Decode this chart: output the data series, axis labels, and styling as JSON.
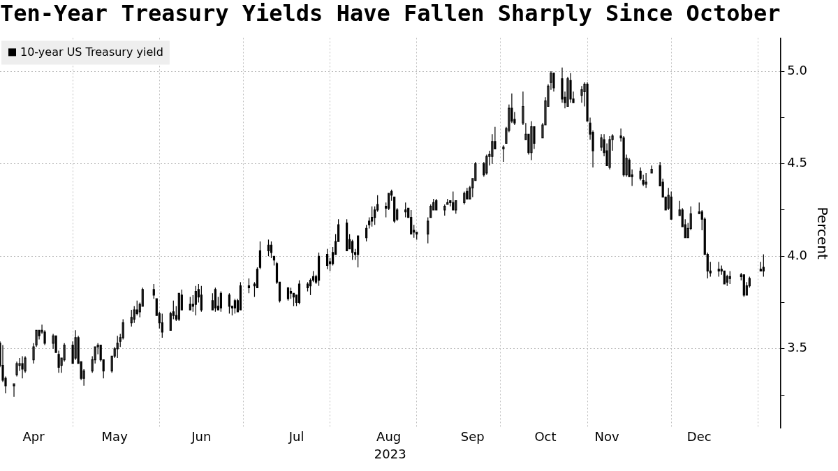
{
  "chart_data": {
    "type": "candlestick",
    "title": "Ten-Year Treasury Yields Have Fallen Sharply Since October",
    "xlabel": "2023",
    "ylabel": "Percent",
    "x": [
      "2023-04-05",
      "2023-04-06",
      "2023-04-07",
      "2023-04-10",
      "2023-04-11",
      "2023-04-12",
      "2023-04-13",
      "2023-04-14",
      "2023-04-17",
      "2023-04-18",
      "2023-04-19",
      "2023-04-20",
      "2023-04-21",
      "2023-04-24",
      "2023-04-25",
      "2023-04-26",
      "2023-04-27",
      "2023-04-28",
      "2023-05-01",
      "2023-05-02",
      "2023-05-03",
      "2023-05-04",
      "2023-05-05",
      "2023-05-08",
      "2023-05-09",
      "2023-05-10",
      "2023-05-11",
      "2023-05-12",
      "2023-05-15",
      "2023-05-16",
      "2023-05-17",
      "2023-05-18",
      "2023-05-19",
      "2023-05-22",
      "2023-05-23",
      "2023-05-24",
      "2023-05-25",
      "2023-05-26",
      "2023-05-30",
      "2023-05-31",
      "2023-06-01",
      "2023-06-02",
      "2023-06-05",
      "2023-06-06",
      "2023-06-07",
      "2023-06-08",
      "2023-06-09",
      "2023-06-12",
      "2023-06-13",
      "2023-06-14",
      "2023-06-15",
      "2023-06-16",
      "2023-06-20",
      "2023-06-21",
      "2023-06-22",
      "2023-06-23",
      "2023-06-26",
      "2023-06-27",
      "2023-06-28",
      "2023-06-29",
      "2023-06-30",
      "2023-07-03",
      "2023-07-05",
      "2023-07-06",
      "2023-07-07",
      "2023-07-10",
      "2023-07-11",
      "2023-07-12",
      "2023-07-13",
      "2023-07-14",
      "2023-07-17",
      "2023-07-18",
      "2023-07-19",
      "2023-07-20",
      "2023-07-21",
      "2023-07-24",
      "2023-07-25",
      "2023-07-26",
      "2023-07-27",
      "2023-07-28",
      "2023-07-31",
      "2023-08-01",
      "2023-08-02",
      "2023-08-03",
      "2023-08-04",
      "2023-08-07",
      "2023-08-08",
      "2023-08-09",
      "2023-08-10",
      "2023-08-11",
      "2023-08-14",
      "2023-08-15",
      "2023-08-16",
      "2023-08-17",
      "2023-08-18",
      "2023-08-21",
      "2023-08-22",
      "2023-08-23",
      "2023-08-24",
      "2023-08-25",
      "2023-08-28",
      "2023-08-29",
      "2023-08-30",
      "2023-08-31",
      "2023-09-01",
      "2023-09-05",
      "2023-09-06",
      "2023-09-07",
      "2023-09-08",
      "2023-09-11",
      "2023-09-12",
      "2023-09-13",
      "2023-09-14",
      "2023-09-15",
      "2023-09-18",
      "2023-09-19",
      "2023-09-20",
      "2023-09-21",
      "2023-09-22",
      "2023-09-25",
      "2023-09-26",
      "2023-09-27",
      "2023-09-28",
      "2023-09-29",
      "2023-10-02",
      "2023-10-03",
      "2023-10-04",
      "2023-10-05",
      "2023-10-06",
      "2023-10-09",
      "2023-10-10",
      "2023-10-11",
      "2023-10-12",
      "2023-10-13",
      "2023-10-16",
      "2023-10-17",
      "2023-10-18",
      "2023-10-19",
      "2023-10-20",
      "2023-10-23",
      "2023-10-24",
      "2023-10-25",
      "2023-10-26",
      "2023-10-27",
      "2023-10-30",
      "2023-10-31",
      "2023-11-01",
      "2023-11-02",
      "2023-11-03",
      "2023-11-06",
      "2023-11-07",
      "2023-11-08",
      "2023-11-09",
      "2023-11-10",
      "2023-11-13",
      "2023-11-14",
      "2023-11-15",
      "2023-11-16",
      "2023-11-17",
      "2023-11-20",
      "2023-11-21",
      "2023-11-22",
      "2023-11-24",
      "2023-11-27",
      "2023-11-28",
      "2023-11-29",
      "2023-11-30",
      "2023-12-01",
      "2023-12-04",
      "2023-12-05",
      "2023-12-06",
      "2023-12-07",
      "2023-12-08",
      "2023-12-11",
      "2023-12-12",
      "2023-12-13",
      "2023-12-14",
      "2023-12-15",
      "2023-12-18",
      "2023-12-19",
      "2023-12-20",
      "2023-12-21",
      "2023-12-22",
      "2023-12-26",
      "2023-12-27",
      "2023-12-28",
      "2023-12-29",
      "2024-01-02",
      "2024-01-03"
    ],
    "series": [
      {
        "name": "10-year US Treasury yield",
        "color": "#000000",
        "ohlc": [
          [
            3.53,
            3.54,
            3.4,
            3.41
          ],
          [
            3.41,
            3.52,
            3.32,
            3.33
          ],
          [
            3.34,
            3.35,
            3.26,
            3.3
          ],
          [
            3.3,
            3.31,
            3.24,
            3.31
          ],
          [
            3.36,
            3.43,
            3.35,
            3.42
          ],
          [
            3.41,
            3.45,
            3.38,
            3.42
          ],
          [
            3.42,
            3.46,
            3.34,
            3.39
          ],
          [
            3.38,
            3.46,
            3.37,
            3.45
          ],
          [
            3.44,
            3.53,
            3.42,
            3.51
          ],
          [
            3.52,
            3.6,
            3.51,
            3.6
          ],
          [
            3.6,
            3.6,
            3.55,
            3.57
          ],
          [
            3.59,
            3.63,
            3.58,
            3.6
          ],
          [
            3.59,
            3.6,
            3.52,
            3.53
          ],
          [
            3.53,
            3.58,
            3.5,
            3.57
          ],
          [
            3.57,
            3.57,
            3.48,
            3.48
          ],
          [
            3.47,
            3.49,
            3.37,
            3.4
          ],
          [
            3.41,
            3.45,
            3.37,
            3.45
          ],
          [
            3.44,
            3.53,
            3.43,
            3.52
          ],
          [
            3.52,
            3.54,
            3.42,
            3.42
          ],
          [
            3.45,
            3.6,
            3.44,
            3.56
          ],
          [
            3.56,
            3.57,
            3.42,
            3.42
          ],
          [
            3.43,
            3.43,
            3.33,
            3.34
          ],
          [
            3.34,
            3.39,
            3.3,
            3.38
          ],
          [
            3.38,
            3.46,
            3.37,
            3.44
          ],
          [
            3.44,
            3.51,
            3.42,
            3.51
          ],
          [
            3.51,
            3.53,
            3.47,
            3.52
          ],
          [
            3.52,
            3.52,
            3.43,
            3.44
          ],
          [
            3.44,
            3.44,
            3.34,
            3.38
          ],
          [
            3.38,
            3.46,
            3.37,
            3.46
          ],
          [
            3.46,
            3.51,
            3.45,
            3.5
          ],
          [
            3.5,
            3.57,
            3.45,
            3.53
          ],
          [
            3.54,
            3.58,
            3.51,
            3.56
          ],
          [
            3.56,
            3.66,
            3.55,
            3.64
          ],
          [
            3.64,
            3.71,
            3.62,
            3.67
          ],
          [
            3.66,
            3.73,
            3.64,
            3.71
          ],
          [
            3.71,
            3.76,
            3.68,
            3.69
          ],
          [
            3.7,
            3.75,
            3.67,
            3.74
          ],
          [
            3.73,
            3.83,
            3.73,
            3.82
          ],
          [
            3.82,
            3.85,
            3.77,
            3.79
          ],
          [
            3.77,
            3.77,
            3.68,
            3.68
          ],
          [
            3.69,
            3.7,
            3.61,
            3.64
          ],
          [
            3.64,
            3.69,
            3.56,
            3.59
          ],
          [
            3.6,
            3.7,
            3.6,
            3.69
          ],
          [
            3.7,
            3.76,
            3.66,
            3.68
          ],
          [
            3.68,
            3.73,
            3.65,
            3.66
          ],
          [
            3.66,
            3.8,
            3.65,
            3.8
          ],
          [
            3.79,
            3.82,
            3.71,
            3.71
          ],
          [
            3.71,
            3.78,
            3.71,
            3.74
          ],
          [
            3.74,
            3.79,
            3.7,
            3.73
          ],
          [
            3.74,
            3.84,
            3.68,
            3.81
          ],
          [
            3.82,
            3.85,
            3.75,
            3.78
          ],
          [
            3.79,
            3.84,
            3.7,
            3.71
          ],
          [
            3.71,
            3.8,
            3.71,
            3.76
          ],
          [
            3.82,
            3.83,
            3.7,
            3.72
          ],
          [
            3.73,
            3.78,
            3.71,
            3.71
          ],
          [
            3.72,
            3.81,
            3.7,
            3.8
          ],
          [
            3.79,
            3.8,
            3.69,
            3.73
          ],
          [
            3.72,
            3.73,
            3.68,
            3.73
          ],
          [
            3.72,
            3.77,
            3.69,
            3.76
          ],
          [
            3.76,
            3.77,
            3.7,
            3.7
          ],
          [
            3.71,
            3.86,
            3.71,
            3.84
          ],
          [
            3.83,
            3.88,
            3.8,
            3.84
          ],
          [
            3.84,
            3.86,
            3.78,
            3.85
          ],
          [
            3.83,
            3.94,
            3.83,
            3.93
          ],
          [
            3.94,
            4.08,
            3.93,
            4.03
          ],
          [
            4.03,
            4.09,
            4.0,
            4.06
          ],
          [
            4.06,
            4.08,
            3.99,
            4.02
          ],
          [
            4.0,
            4.0,
            3.95,
            3.98
          ],
          [
            3.96,
            3.97,
            3.85,
            3.86
          ],
          [
            3.86,
            3.86,
            3.75,
            3.76
          ],
          [
            3.77,
            3.83,
            3.76,
            3.83
          ],
          [
            3.81,
            3.83,
            3.77,
            3.8
          ],
          [
            3.8,
            3.8,
            3.73,
            3.78
          ],
          [
            3.79,
            3.79,
            3.73,
            3.75
          ],
          [
            3.75,
            3.87,
            3.74,
            3.85
          ],
          [
            3.85,
            3.86,
            3.81,
            3.83
          ],
          [
            3.84,
            3.88,
            3.79,
            3.87
          ],
          [
            3.87,
            3.92,
            3.86,
            3.89
          ],
          [
            3.89,
            3.9,
            3.85,
            3.86
          ],
          [
            3.87,
            4.02,
            3.84,
            4.0
          ],
          [
            4.01,
            4.04,
            3.93,
            3.95
          ],
          [
            3.96,
            3.99,
            3.92,
            3.97
          ],
          [
            3.96,
            4.05,
            3.95,
            4.02
          ],
          [
            4.01,
            4.12,
            4.01,
            4.08
          ],
          [
            4.08,
            4.2,
            4.08,
            4.17
          ],
          [
            4.18,
            4.2,
            4.03,
            4.03
          ],
          [
            4.04,
            4.12,
            4.04,
            4.09
          ],
          [
            4.08,
            4.09,
            3.98,
            4.02
          ],
          [
            4.02,
            4.04,
            3.98,
            4.01
          ],
          [
            4.01,
            4.11,
            3.94,
            4.11
          ],
          [
            4.1,
            4.17,
            4.08,
            4.15
          ],
          [
            4.17,
            4.21,
            4.15,
            4.19
          ],
          [
            4.19,
            4.27,
            4.16,
            4.21
          ],
          [
            4.21,
            4.27,
            4.17,
            4.25
          ],
          [
            4.25,
            4.33,
            4.24,
            4.28
          ],
          [
            4.27,
            4.29,
            4.21,
            4.26
          ],
          [
            4.26,
            4.34,
            4.25,
            4.34
          ],
          [
            4.35,
            4.36,
            4.3,
            4.33
          ],
          [
            4.32,
            4.32,
            4.18,
            4.19
          ],
          [
            4.2,
            4.26,
            4.19,
            4.25
          ],
          [
            4.24,
            4.29,
            4.21,
            4.25
          ],
          [
            4.26,
            4.26,
            4.21,
            4.21
          ],
          [
            4.21,
            4.25,
            4.12,
            4.12
          ],
          [
            4.14,
            4.17,
            4.1,
            4.13
          ],
          [
            4.13,
            4.13,
            4.09,
            4.12
          ],
          [
            4.12,
            4.21,
            4.07,
            4.19
          ],
          [
            4.21,
            4.28,
            4.21,
            4.27
          ],
          [
            4.25,
            4.31,
            4.25,
            4.29
          ],
          [
            4.3,
            4.31,
            4.25,
            4.25
          ],
          [
            4.25,
            4.28,
            4.22,
            4.27
          ],
          [
            4.28,
            4.31,
            4.28,
            4.29
          ],
          [
            4.3,
            4.3,
            4.27,
            4.29
          ],
          [
            4.29,
            4.35,
            4.25,
            4.25
          ],
          [
            4.25,
            4.3,
            4.23,
            4.3
          ],
          [
            4.29,
            4.35,
            4.28,
            4.34
          ],
          [
            4.35,
            4.37,
            4.31,
            4.31
          ],
          [
            4.31,
            4.38,
            4.31,
            4.37
          ],
          [
            4.37,
            4.42,
            4.32,
            4.42
          ],
          [
            4.41,
            4.51,
            4.41,
            4.5
          ],
          [
            4.5,
            4.51,
            4.43,
            4.44
          ],
          [
            4.45,
            4.55,
            4.44,
            4.54
          ],
          [
            4.54,
            4.57,
            4.49,
            4.55
          ],
          [
            4.54,
            4.66,
            4.5,
            4.62
          ],
          [
            4.62,
            4.7,
            4.58,
            4.58
          ],
          [
            4.58,
            4.6,
            4.51,
            4.59
          ],
          [
            4.61,
            4.7,
            4.61,
            4.69
          ],
          [
            4.68,
            4.82,
            4.67,
            4.8
          ],
          [
            4.8,
            4.88,
            4.72,
            4.73
          ],
          [
            4.74,
            4.78,
            4.71,
            4.72
          ],
          [
            4.72,
            4.89,
            4.71,
            4.81
          ],
          [
            4.63,
            4.72,
            4.63,
            4.66
          ],
          [
            4.66,
            4.66,
            4.55,
            4.56
          ],
          [
            4.56,
            4.73,
            4.52,
            4.7
          ],
          [
            4.7,
            4.7,
            4.58,
            4.61
          ],
          [
            4.64,
            4.72,
            4.64,
            4.71
          ],
          [
            4.71,
            4.86,
            4.71,
            4.84
          ],
          [
            4.81,
            4.93,
            4.81,
            4.92
          ],
          [
            4.94,
            5.0,
            4.9,
            4.99
          ],
          [
            4.99,
            4.99,
            4.89,
            4.91
          ],
          [
            4.96,
            5.02,
            4.83,
            4.85
          ],
          [
            4.86,
            4.89,
            4.8,
            4.83
          ],
          [
            4.81,
            4.97,
            4.81,
            4.96
          ],
          [
            4.95,
            4.99,
            4.83,
            4.85
          ],
          [
            4.85,
            4.89,
            4.83,
            4.83
          ],
          [
            4.87,
            4.92,
            4.83,
            4.9
          ],
          [
            4.89,
            4.94,
            4.81,
            4.93
          ],
          [
            4.93,
            4.94,
            4.73,
            4.73
          ],
          [
            4.72,
            4.75,
            4.63,
            4.66
          ],
          [
            4.67,
            4.68,
            4.48,
            4.57
          ],
          [
            4.59,
            4.66,
            4.57,
            4.64
          ],
          [
            4.63,
            4.66,
            4.54,
            4.56
          ],
          [
            4.57,
            4.61,
            4.49,
            4.49
          ],
          [
            4.48,
            4.65,
            4.47,
            4.63
          ],
          [
            4.63,
            4.66,
            4.57,
            4.65
          ],
          [
            4.65,
            4.69,
            4.62,
            4.64
          ],
          [
            4.64,
            4.65,
            4.43,
            4.44
          ],
          [
            4.44,
            4.55,
            4.43,
            4.53
          ],
          [
            4.52,
            4.53,
            4.43,
            4.43
          ],
          [
            4.44,
            4.47,
            4.38,
            4.43
          ],
          [
            4.46,
            4.48,
            4.41,
            4.42
          ],
          [
            4.41,
            4.44,
            4.38,
            4.39
          ],
          [
            4.39,
            4.45,
            4.37,
            4.4
          ],
          [
            4.45,
            4.49,
            4.45,
            4.47
          ],
          [
            4.49,
            4.51,
            4.38,
            4.38
          ],
          [
            4.4,
            4.42,
            4.32,
            4.32
          ],
          [
            4.32,
            4.32,
            4.25,
            4.25
          ],
          [
            4.26,
            4.37,
            4.25,
            4.33
          ],
          [
            4.32,
            4.35,
            4.2,
            4.2
          ],
          [
            4.22,
            4.3,
            4.22,
            4.25
          ],
          [
            4.25,
            4.26,
            4.16,
            4.16
          ],
          [
            4.17,
            4.2,
            4.1,
            4.1
          ],
          [
            4.1,
            4.18,
            4.1,
            4.15
          ],
          [
            4.15,
            4.27,
            4.14,
            4.23
          ],
          [
            4.24,
            4.29,
            4.23,
            4.23
          ],
          [
            4.24,
            4.25,
            4.14,
            4.2
          ],
          [
            4.2,
            4.21,
            4.01,
            4.01
          ],
          [
            4.01,
            4.02,
            3.88,
            3.92
          ],
          [
            3.92,
            3.97,
            3.89,
            3.91
          ],
          [
            3.93,
            3.97,
            3.89,
            3.92
          ],
          [
            3.93,
            3.95,
            3.9,
            3.92
          ],
          [
            3.92,
            3.92,
            3.85,
            3.85
          ],
          [
            3.86,
            3.9,
            3.84,
            3.89
          ],
          [
            3.88,
            3.92,
            3.85,
            3.89
          ],
          [
            3.9,
            3.91,
            3.87,
            3.89
          ],
          [
            3.9,
            3.9,
            3.78,
            3.79
          ],
          [
            3.79,
            3.86,
            3.79,
            3.84
          ],
          [
            3.84,
            3.89,
            3.83,
            3.88
          ],
          [
            3.93,
            3.97,
            3.92,
            3.92
          ],
          [
            3.94,
            4.01,
            3.89,
            3.92
          ]
        ]
      }
    ],
    "xlim": [
      "2023-04-05",
      "2024-01-09"
    ],
    "xticks": [
      {
        "value": "2023-04-17",
        "label": "Apr"
      },
      {
        "value": "2023-05-01",
        "label": null
      },
      {
        "value": "2023-05-16",
        "label": "May"
      },
      {
        "value": "2023-06-01",
        "label": null
      },
      {
        "value": "2023-06-16",
        "label": "Jun"
      },
      {
        "value": "2023-07-01",
        "label": null
      },
      {
        "value": "2023-07-20",
        "label": "Jul"
      },
      {
        "value": "2023-08-01",
        "label": null
      },
      {
        "value": "2023-08-22",
        "label": "Aug"
      },
      {
        "value": "2023-09-01",
        "label": null
      },
      {
        "value": "2023-09-21",
        "label": "Sep"
      },
      {
        "value": "2023-10-01",
        "label": null
      },
      {
        "value": "2023-10-17",
        "label": "Oct"
      },
      {
        "value": "2023-11-01",
        "label": null
      },
      {
        "value": "2023-11-08",
        "label": "Nov"
      },
      {
        "value": "2023-12-01",
        "label": null
      },
      {
        "value": "2023-12-11",
        "label": "Dec"
      },
      {
        "value": "2024-01-01",
        "label": null
      }
    ],
    "ylim": [
      3.07,
      5.18
    ],
    "yticks": [
      {
        "value": 3.25,
        "label": null
      },
      {
        "value": 3.5,
        "label": "3.5"
      },
      {
        "value": 3.75,
        "label": null
      },
      {
        "value": 4,
        "label": "4.0"
      },
      {
        "value": 4.25,
        "label": null
      },
      {
        "value": 4.5,
        "label": "4.5"
      },
      {
        "value": 4.75,
        "label": null
      },
      {
        "value": 5,
        "label": "5.0"
      }
    ],
    "grid": true,
    "legend": "top left"
  }
}
